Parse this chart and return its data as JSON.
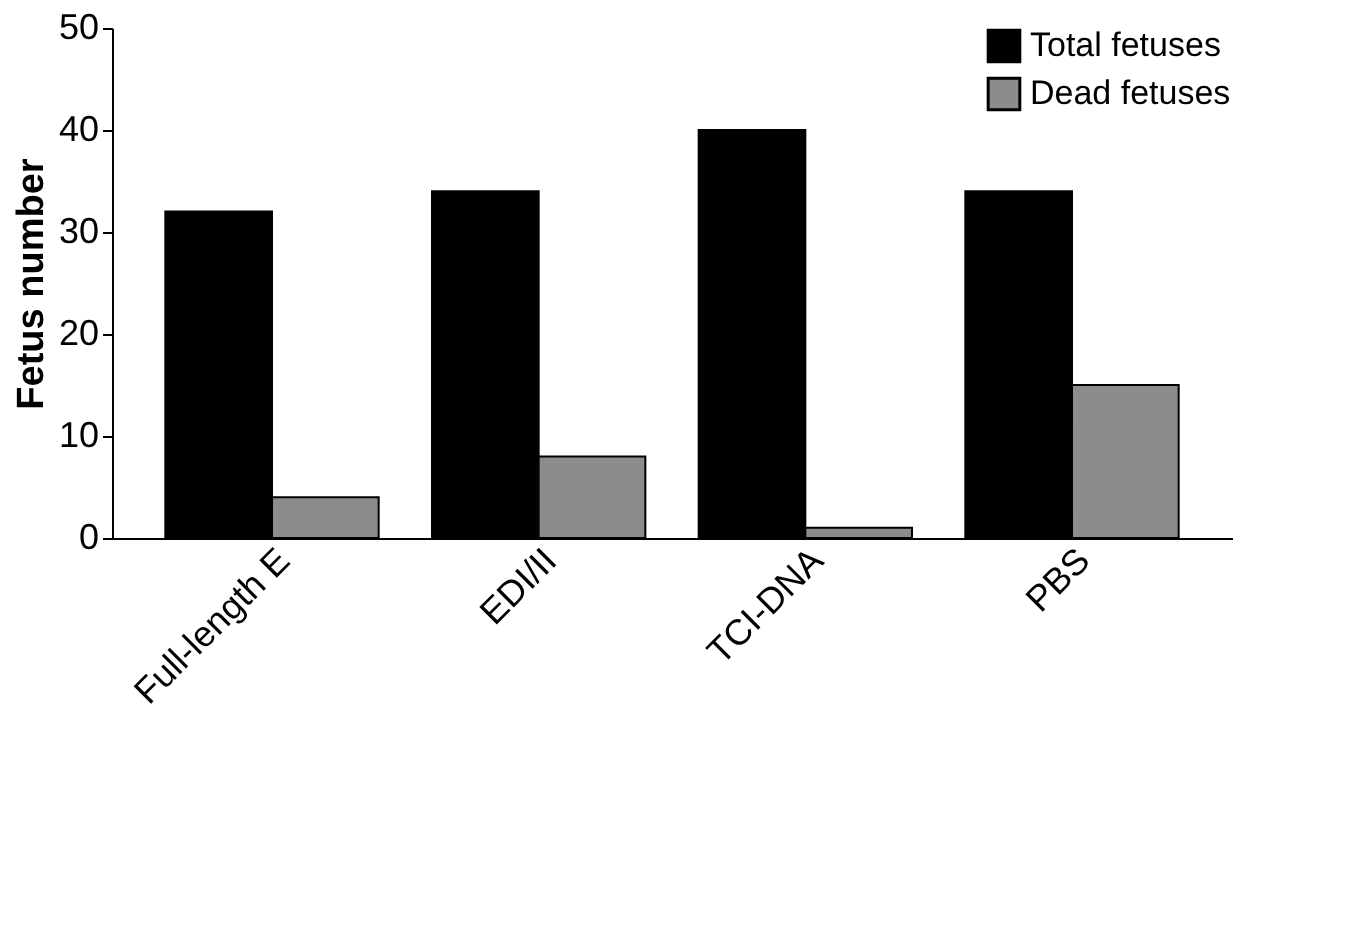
{
  "chart_data": {
    "type": "bar",
    "ylabel": "Fetus number",
    "categories": [
      "Full-length E",
      "EDI/II",
      "TCI-DNA",
      "PBS"
    ],
    "series": [
      {
        "name": "Total fetuses",
        "color": "#000000",
        "values": [
          32,
          34,
          40,
          34
        ]
      },
      {
        "name": "Dead fetuses",
        "color": "#8c8c8c",
        "values": [
          4,
          8,
          1,
          15
        ]
      }
    ],
    "ylim": [
      0,
      50
    ],
    "yticks": [
      0,
      10,
      20,
      30,
      40,
      50
    ],
    "grid": false,
    "legend": "top right"
  }
}
